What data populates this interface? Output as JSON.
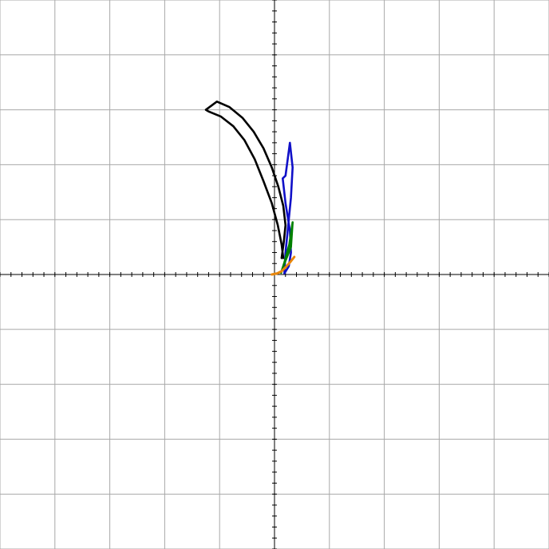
{
  "chart_data": {
    "type": "line",
    "title": "",
    "xlabel": "",
    "ylabel": "",
    "xlim": [
      -5,
      5
    ],
    "ylim": [
      -5,
      5
    ],
    "grid": true,
    "grid_step": 1,
    "minor_tick_step": 0.2,
    "legend": "none",
    "series": [
      {
        "name": "black",
        "color": "#000000",
        "width": 2.6,
        "x": [
          0.13,
          0.17,
          0.2,
          0.16,
          0.07,
          -0.05,
          -0.2,
          -0.38,
          -0.58,
          -0.82,
          -1.05,
          -1.25,
          -1.2,
          -0.98,
          -0.75,
          -0.55,
          -0.36,
          -0.2,
          -0.05,
          0.06,
          0.13,
          0.16
        ],
        "y": [
          0.3,
          0.6,
          0.9,
          1.25,
          1.6,
          1.95,
          2.3,
          2.6,
          2.85,
          3.05,
          3.15,
          3.0,
          2.97,
          2.88,
          2.7,
          2.45,
          2.1,
          1.7,
          1.3,
          0.9,
          0.55,
          0.3
        ]
      },
      {
        "name": "blue",
        "color": "#1010c8",
        "width": 2.6,
        "x": [
          0.18,
          0.2,
          0.25,
          0.3,
          0.33,
          0.28,
          0.2,
          0.15,
          0.2,
          0.28,
          0.3,
          0.26,
          0.18
        ],
        "y": [
          0.02,
          0.4,
          0.9,
          1.4,
          1.95,
          2.4,
          1.8,
          1.75,
          1.3,
          0.8,
          0.4,
          0.15,
          0.02
        ]
      },
      {
        "name": "green",
        "color": "#008000",
        "width": 2.6,
        "x": [
          0.12,
          0.16,
          0.22,
          0.3,
          0.33,
          0.27,
          0.18,
          0.13
        ],
        "y": [
          0.03,
          0.15,
          0.3,
          0.5,
          0.95,
          0.55,
          0.22,
          0.06
        ]
      },
      {
        "name": "orange",
        "color": "#e8860a",
        "width": 3.0,
        "x": [
          -0.05,
          0.05,
          0.13,
          0.2,
          0.28,
          0.36
        ],
        "y": [
          0.0,
          0.02,
          0.06,
          0.13,
          0.22,
          0.32
        ]
      }
    ]
  }
}
